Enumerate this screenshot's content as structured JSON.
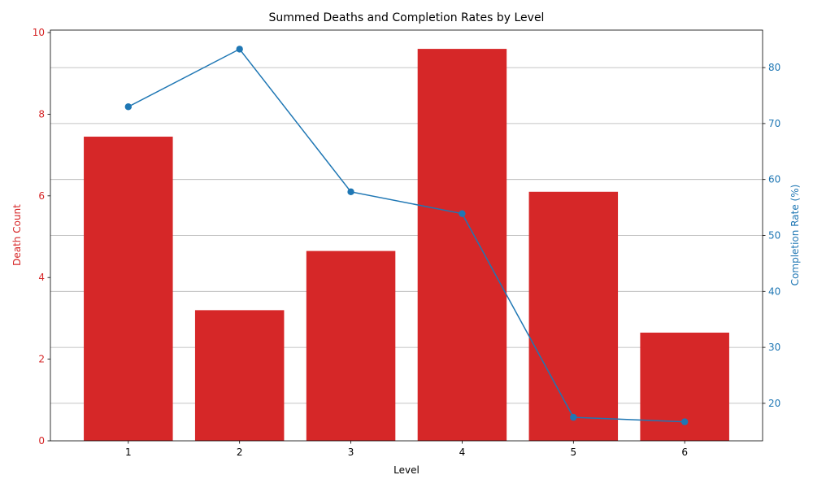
{
  "chart_data": {
    "type": "bar+line",
    "title": "Summed Deaths and Completion Rates by Level",
    "xlabel": "Level",
    "categories": [
      "1",
      "2",
      "3",
      "4",
      "5",
      "6"
    ],
    "left_axis": {
      "label": "Death Count",
      "color": "#d62728",
      "ylim": [
        0,
        10.06
      ],
      "ticks": [
        "0",
        "2",
        "4",
        "6",
        "8",
        "10"
      ]
    },
    "right_axis": {
      "label": "Completion Rate (%)",
      "color": "#1f77b4",
      "ylim": [
        13.3,
        86.7
      ],
      "ticks": [
        "20",
        "30",
        "40",
        "50",
        "60",
        "70",
        "80"
      ]
    },
    "series": [
      {
        "name": "Death Count",
        "kind": "bar",
        "axis": "left",
        "color": "#d62728",
        "values": [
          7.45,
          3.2,
          4.65,
          9.6,
          6.1,
          2.65
        ]
      },
      {
        "name": "Completion Rate (%)",
        "kind": "line",
        "axis": "right",
        "color": "#1f77b4",
        "values": [
          73.0,
          83.3,
          57.8,
          53.9,
          17.5,
          16.7
        ]
      }
    ],
    "grid": "horizontal (right axis)"
  }
}
